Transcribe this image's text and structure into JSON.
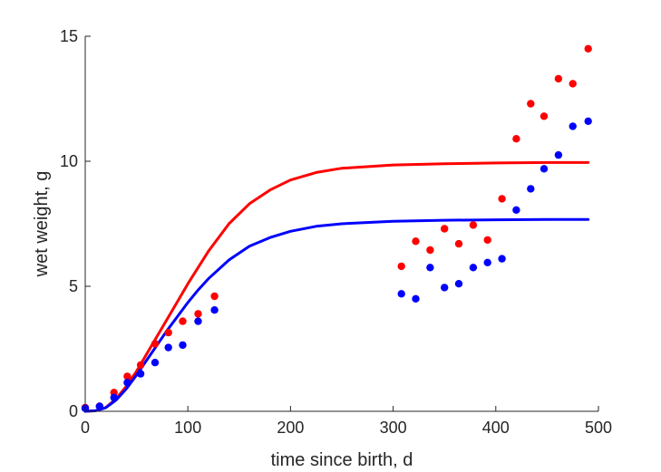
{
  "chart_data": {
    "type": "scatter",
    "xlabel": "time since birth, d",
    "ylabel": "wet weight, g",
    "xlim": [
      0,
      500
    ],
    "ylim": [
      0,
      15
    ],
    "xticks": [
      0,
      100,
      200,
      300,
      400,
      500
    ],
    "yticks": [
      0,
      5,
      10,
      15
    ],
    "grid": false,
    "series": [
      {
        "kind": "points",
        "color": "#ff0000",
        "points": [
          [
            0,
            0.15
          ],
          [
            14,
            0.2
          ],
          [
            28,
            0.75
          ],
          [
            41,
            1.4
          ],
          [
            54,
            1.85
          ],
          [
            68,
            2.7
          ],
          [
            81,
            3.15
          ],
          [
            95,
            3.6
          ],
          [
            110,
            3.9
          ],
          [
            126,
            4.6
          ],
          [
            308,
            5.8
          ],
          [
            322,
            6.8
          ],
          [
            336,
            6.45
          ],
          [
            350,
            7.3
          ],
          [
            364,
            6.7
          ],
          [
            378,
            7.45
          ],
          [
            392,
            6.85
          ],
          [
            406,
            8.5
          ],
          [
            420,
            10.9
          ],
          [
            434,
            12.3
          ],
          [
            447,
            11.8
          ],
          [
            461,
            13.3
          ],
          [
            475,
            13.1
          ],
          [
            490,
            14.5
          ]
        ]
      },
      {
        "kind": "points",
        "color": "#0000ff",
        "points": [
          [
            0,
            0.12
          ],
          [
            14,
            0.2
          ],
          [
            28,
            0.55
          ],
          [
            41,
            1.15
          ],
          [
            54,
            1.5
          ],
          [
            68,
            1.95
          ],
          [
            81,
            2.55
          ],
          [
            95,
            2.65
          ],
          [
            110,
            3.6
          ],
          [
            126,
            4.05
          ],
          [
            308,
            4.7
          ],
          [
            322,
            4.5
          ],
          [
            336,
            5.75
          ],
          [
            350,
            4.95
          ],
          [
            364,
            5.1
          ],
          [
            378,
            5.75
          ],
          [
            392,
            5.95
          ],
          [
            406,
            6.1
          ],
          [
            420,
            8.05
          ],
          [
            434,
            8.9
          ],
          [
            447,
            9.7
          ],
          [
            461,
            10.25
          ],
          [
            475,
            11.4
          ],
          [
            490,
            11.6
          ]
        ]
      },
      {
        "kind": "line",
        "color": "#ff0000",
        "points": [
          [
            0,
            0.0
          ],
          [
            10,
            0.02
          ],
          [
            20,
            0.15
          ],
          [
            30,
            0.5
          ],
          [
            40,
            1.0
          ],
          [
            50,
            1.6
          ],
          [
            60,
            2.3
          ],
          [
            70,
            3.0
          ],
          [
            80,
            3.7
          ],
          [
            90,
            4.4
          ],
          [
            100,
            5.1
          ],
          [
            110,
            5.75
          ],
          [
            120,
            6.4
          ],
          [
            140,
            7.5
          ],
          [
            160,
            8.3
          ],
          [
            180,
            8.85
          ],
          [
            200,
            9.25
          ],
          [
            225,
            9.55
          ],
          [
            250,
            9.72
          ],
          [
            300,
            9.85
          ],
          [
            350,
            9.9
          ],
          [
            400,
            9.93
          ],
          [
            450,
            9.95
          ],
          [
            490,
            9.95
          ]
        ]
      },
      {
        "kind": "line",
        "color": "#0000ff",
        "points": [
          [
            0,
            0.0
          ],
          [
            10,
            0.02
          ],
          [
            20,
            0.14
          ],
          [
            30,
            0.45
          ],
          [
            40,
            0.9
          ],
          [
            50,
            1.45
          ],
          [
            60,
            2.05
          ],
          [
            70,
            2.65
          ],
          [
            80,
            3.25
          ],
          [
            90,
            3.8
          ],
          [
            100,
            4.35
          ],
          [
            110,
            4.85
          ],
          [
            120,
            5.3
          ],
          [
            140,
            6.05
          ],
          [
            160,
            6.6
          ],
          [
            180,
            6.95
          ],
          [
            200,
            7.2
          ],
          [
            225,
            7.4
          ],
          [
            250,
            7.5
          ],
          [
            300,
            7.6
          ],
          [
            350,
            7.64
          ],
          [
            400,
            7.66
          ],
          [
            450,
            7.67
          ],
          [
            490,
            7.67
          ]
        ]
      }
    ]
  }
}
